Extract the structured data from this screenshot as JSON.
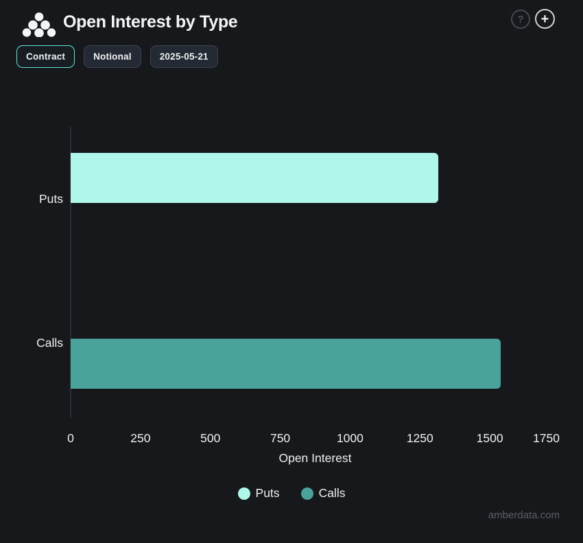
{
  "header": {
    "title": "Open Interest by Type"
  },
  "icons": {
    "logo": "amberdata-dots-logo",
    "help": "?",
    "add": "+"
  },
  "toolbar": {
    "buttons": [
      {
        "label": "Contract",
        "active": true
      },
      {
        "label": "Notional",
        "active": false
      },
      {
        "label": "2025-05-21",
        "active": false
      }
    ]
  },
  "chart_data": {
    "type": "bar",
    "orientation": "horizontal",
    "title": "Open Interest by Type",
    "categories": [
      "Puts",
      "Calls"
    ],
    "series": [
      {
        "name": "Puts",
        "value": 1315,
        "color": "#aff8e9"
      },
      {
        "name": "Calls",
        "value": 1540,
        "color": "#4aa39b"
      }
    ],
    "xlabel": "Open Interest",
    "x_ticks": [
      0,
      250,
      500,
      750,
      1000,
      1250,
      1500,
      1750
    ],
    "xlim": [
      0,
      1750
    ],
    "grid": false,
    "legend": {
      "position": "bottom",
      "items": [
        "Puts",
        "Calls"
      ]
    }
  },
  "watermark": "amberdata.com",
  "colors": {
    "background": "#16181c",
    "puts": "#aff8e9",
    "calls": "#4aa39b",
    "active_button_border": "#5fe8d4",
    "text": "#eef0f1",
    "axis_line": "#2b2e34"
  }
}
